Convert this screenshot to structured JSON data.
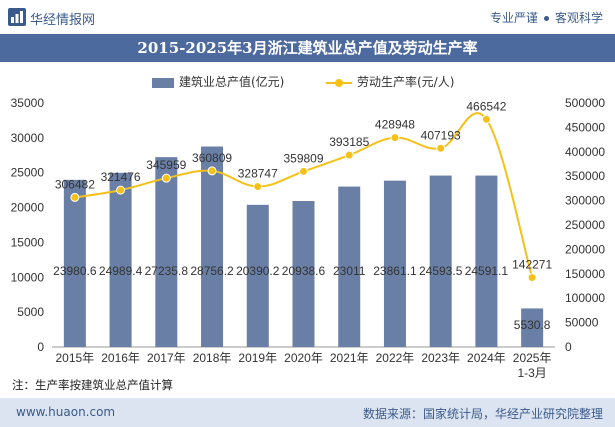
{
  "header": {
    "site_name": "华经情报网",
    "tagline_left": "专业严谨",
    "tagline_right": "客观科学"
  },
  "footer": {
    "note": "注：生产率按建筑业总产值计算",
    "url": "www.huaon.com",
    "source": "数据来源：国家统计局，华经产业研究院整理"
  },
  "colors": {
    "bar": "#6a7fa6",
    "line": "#f5c018",
    "title_bar": "#4d6a9f",
    "brand": "#3b5a8c",
    "footer_bg": "#dbe4f0"
  },
  "chart_data": {
    "type": "bar",
    "title": "2015-2025年3月浙江建筑业总产值及劳动生产率",
    "categories": [
      "2015年",
      "2016年",
      "2017年",
      "2018年",
      "2019年",
      "2020年",
      "2021年",
      "2022年",
      "2023年",
      "2024年",
      "2025年1-3月"
    ],
    "series": [
      {
        "name": "建筑业总产值(亿元)",
        "type": "bar",
        "axis": "left",
        "values": [
          23980.6,
          24989.4,
          27235.8,
          28756.2,
          20390.2,
          20938.6,
          23011,
          23861.1,
          24593.5,
          24591.1,
          5530.8
        ],
        "labels": [
          "23980.6",
          "24989.4",
          "27235.8",
          "28756.2",
          "20390.2",
          "20938.6",
          "23011",
          "23861.1",
          "24593.5",
          "24591.1",
          "5530.8"
        ]
      },
      {
        "name": "劳动生产率(元/人)",
        "type": "line",
        "axis": "right",
        "values": [
          306482,
          321476,
          345959,
          360809,
          328747,
          359809,
          393185,
          428948,
          407193,
          466542,
          142271
        ],
        "labels": [
          "306482",
          "321476",
          "345959",
          "360809",
          "328747",
          "359809",
          "393185",
          "428948",
          "407193",
          "466542",
          "142271"
        ]
      }
    ],
    "y_left": {
      "range": [
        0,
        35000
      ],
      "ticks": [
        "0",
        "5000",
        "10000",
        "15000",
        "20000",
        "25000",
        "30000",
        "35000"
      ]
    },
    "y_right": {
      "range": [
        0,
        500000
      ],
      "ticks": [
        "0",
        "50000",
        "100000",
        "150000",
        "200000",
        "250000",
        "300000",
        "350000",
        "400000",
        "450000",
        "500000"
      ]
    },
    "grid": false,
    "legend_position": "top-center"
  }
}
